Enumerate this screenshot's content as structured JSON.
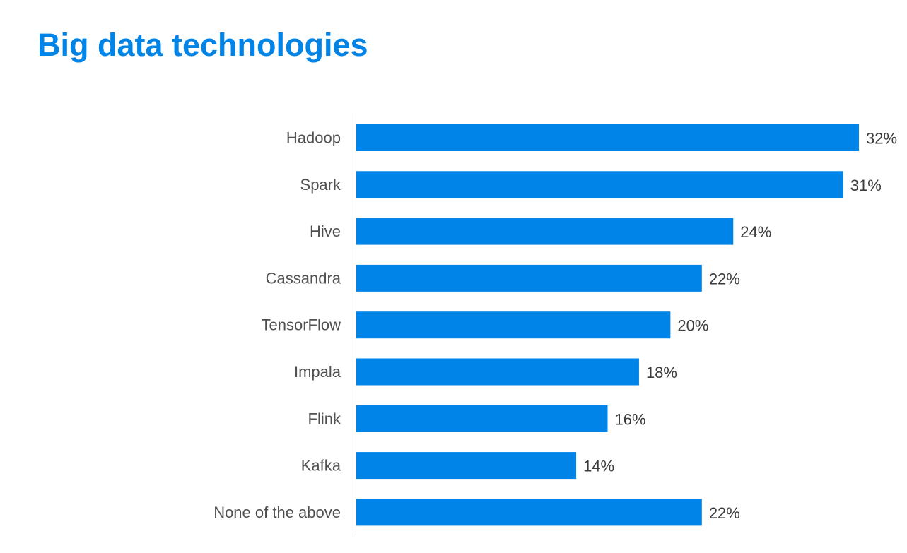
{
  "colors": {
    "bar": "#0184e8",
    "title": "#0184e8",
    "axis_line": "#d9d9d9"
  },
  "chart_data": {
    "type": "bar",
    "orientation": "horizontal",
    "title": "Big data technologies",
    "categories": [
      "Hadoop",
      "Spark",
      "Hive",
      "Cassandra",
      "TensorFlow",
      "Impala",
      "Flink",
      "Kafka",
      "None of the above"
    ],
    "values": [
      32,
      31,
      24,
      22,
      20,
      18,
      16,
      14,
      22
    ],
    "value_labels": [
      "32%",
      "31%",
      "24%",
      "22%",
      "20%",
      "18%",
      "16%",
      "14%",
      "22%"
    ],
    "unit": "%",
    "xlim": [
      0,
      32
    ],
    "grid": false,
    "legend": "none"
  }
}
